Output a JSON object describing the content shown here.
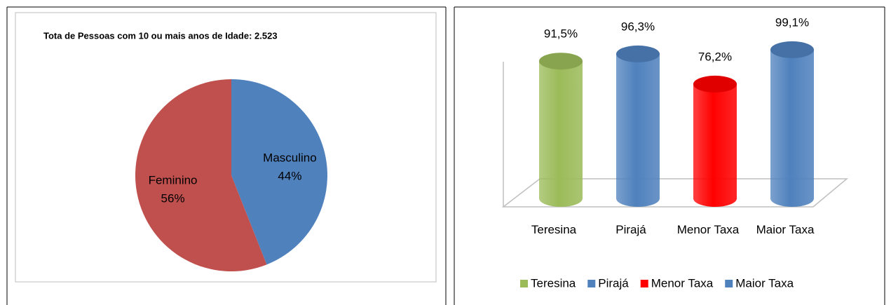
{
  "chart_data": [
    {
      "type": "pie",
      "title": "Tota de Pessoas com 10 ou mais anos de Idade: 2.523",
      "categories": [
        "Masculino",
        "Feminino"
      ],
      "values": [
        44,
        56
      ],
      "value_labels": [
        "44%",
        "56%"
      ],
      "colors": [
        "#4f81bd",
        "#c0504d"
      ]
    },
    {
      "type": "cylinder",
      "categories": [
        "Teresina",
        "Pirajá",
        "Menor Taxa",
        "Maior Taxa"
      ],
      "values": [
        91.5,
        96.3,
        76.2,
        99.1
      ],
      "value_labels": [
        "91,5%",
        "96,3%",
        "76,2%",
        "99,1%"
      ],
      "colors": [
        "#9bbb59",
        "#4f81bd",
        "#ff0000",
        "#4f81bd"
      ],
      "legend": "bottom"
    }
  ]
}
